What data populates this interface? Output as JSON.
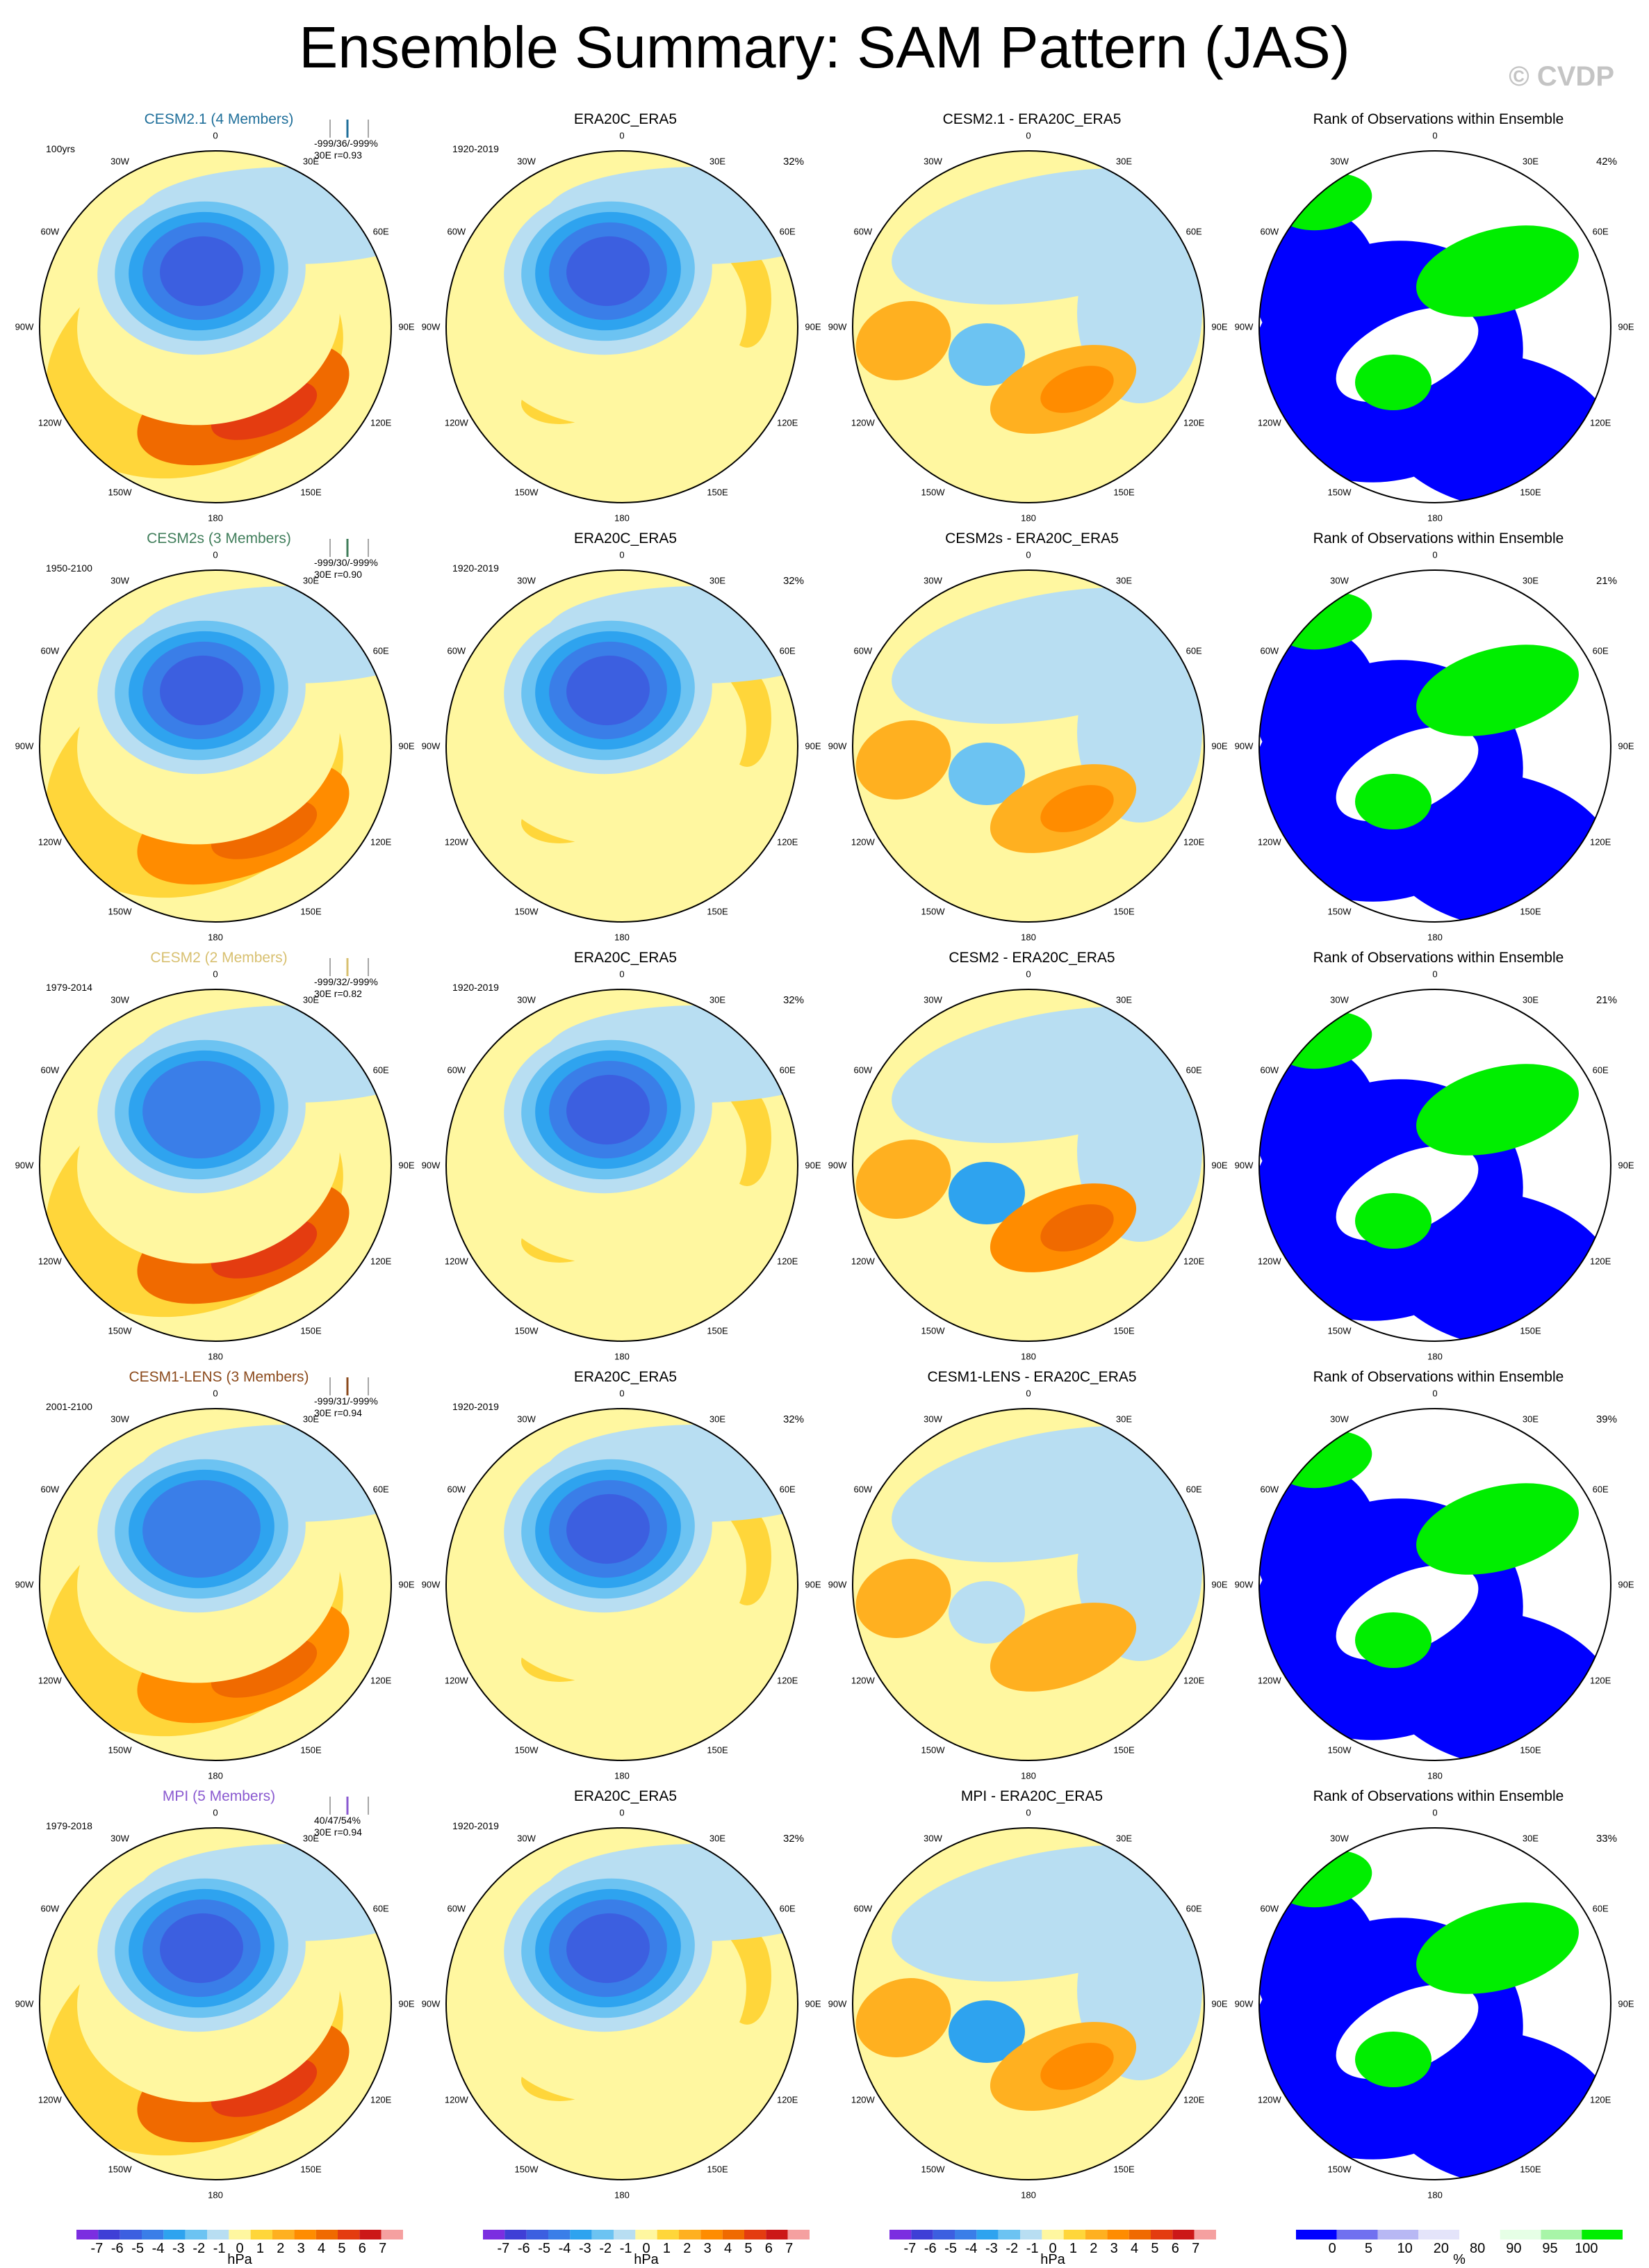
{
  "title": "Ensemble Summary: SAM Pattern (JAS)",
  "watermark": "© CVDP",
  "longitude_labels": [
    "0",
    "30E",
    "60E",
    "90E",
    "120E",
    "150E",
    "180",
    "150W",
    "120W",
    "90W",
    "60W",
    "30W"
  ],
  "chart_data": [
    {
      "type": "heatmap",
      "row": 0,
      "col": 0,
      "title": "CESM2.1 (4 Members)",
      "title_color": "#1f6f9a",
      "period": "100yrs",
      "stats": "-999/36/-999%",
      "stats2": "30E r=0.93",
      "kind": "model",
      "dipole": [
        -6.2,
        4.8
      ],
      "unit": "hPa"
    },
    {
      "type": "heatmap",
      "row": 0,
      "col": 1,
      "title": "ERA20C_ERA5",
      "period": "1920-2019",
      "pct": "32%",
      "kind": "obs",
      "dipole": [
        -5.6,
        2.4
      ],
      "unit": "hPa"
    },
    {
      "type": "heatmap",
      "row": 0,
      "col": 2,
      "title": "CESM2.1 - ERA20C_ERA5",
      "kind": "diff",
      "dipole": [
        -1.5,
        2.8
      ],
      "unit": "hPa"
    },
    {
      "type": "heatmap",
      "row": 0,
      "col": 3,
      "title": "Rank of Observations within Ensemble",
      "pct": "42%",
      "kind": "rank",
      "unit": "%"
    },
    {
      "type": "heatmap",
      "row": 1,
      "col": 0,
      "title": "CESM2s (3 Members)",
      "title_color": "#3f7d5a",
      "period": "1950-2100",
      "stats": "-999/30/-999%",
      "stats2": "30E r=0.90",
      "kind": "model",
      "dipole": [
        -5.8,
        3.6
      ],
      "unit": "hPa"
    },
    {
      "type": "heatmap",
      "row": 1,
      "col": 1,
      "title": "ERA20C_ERA5",
      "period": "1920-2019",
      "pct": "32%",
      "kind": "obs",
      "dipole": [
        -5.6,
        2.4
      ],
      "unit": "hPa"
    },
    {
      "type": "heatmap",
      "row": 1,
      "col": 2,
      "title": "CESM2s - ERA20C_ERA5",
      "kind": "diff",
      "dipole": [
        -1.2,
        2.0
      ],
      "unit": "hPa"
    },
    {
      "type": "heatmap",
      "row": 1,
      "col": 3,
      "title": "Rank of Observations within Ensemble",
      "pct": "21%",
      "kind": "rank",
      "unit": "%"
    },
    {
      "type": "heatmap",
      "row": 2,
      "col": 0,
      "title": "CESM2 (2 Members)",
      "title_color": "#d8c070",
      "period": "1979-2014",
      "stats": "-999/32/-999%",
      "stats2": "30E r=0.82",
      "kind": "model",
      "dipole": [
        -5.2,
        4.4
      ],
      "unit": "hPa"
    },
    {
      "type": "heatmap",
      "row": 2,
      "col": 1,
      "title": "ERA20C_ERA5",
      "period": "1920-2019",
      "pct": "32%",
      "kind": "obs",
      "dipole": [
        -5.6,
        2.4
      ],
      "unit": "hPa"
    },
    {
      "type": "heatmap",
      "row": 2,
      "col": 2,
      "title": "CESM2 - ERA20C_ERA5",
      "kind": "diff",
      "dipole": [
        -2.4,
        3.0
      ],
      "unit": "hPa"
    },
    {
      "type": "heatmap",
      "row": 2,
      "col": 3,
      "title": "Rank of Observations within Ensemble",
      "pct": "21%",
      "kind": "rank",
      "unit": "%"
    },
    {
      "type": "heatmap",
      "row": 3,
      "col": 0,
      "title": "CESM1-LENS (3 Members)",
      "title_color": "#8b4a1c",
      "period": "2001-2100",
      "stats": "-999/31/-999%",
      "stats2": "30E r=0.94",
      "kind": "model",
      "dipole": [
        -5.4,
        3.0
      ],
      "unit": "hPa"
    },
    {
      "type": "heatmap",
      "row": 3,
      "col": 1,
      "title": "ERA20C_ERA5",
      "period": "1920-2019",
      "pct": "32%",
      "kind": "obs",
      "dipole": [
        -5.6,
        2.4
      ],
      "unit": "hPa"
    },
    {
      "type": "heatmap",
      "row": 3,
      "col": 2,
      "title": "CESM1-LENS - ERA20C_ERA5",
      "kind": "diff",
      "dipole": [
        -0.8,
        1.8
      ],
      "unit": "hPa"
    },
    {
      "type": "heatmap",
      "row": 3,
      "col": 3,
      "title": "Rank of Observations within Ensemble",
      "pct": "39%",
      "kind": "rank",
      "unit": "%"
    },
    {
      "type": "heatmap",
      "row": 4,
      "col": 0,
      "title": "MPI (5 Members)",
      "title_color": "#8a5ad0",
      "period": "1979-2018",
      "stats": "40/47/54%",
      "stats2": "30E r=0.94",
      "kind": "model",
      "dipole": [
        -6.6,
        4.4
      ],
      "unit": "hPa"
    },
    {
      "type": "heatmap",
      "row": 4,
      "col": 1,
      "title": "ERA20C_ERA5",
      "period": "1920-2019",
      "pct": "32%",
      "kind": "obs",
      "dipole": [
        -5.6,
        2.4
      ],
      "unit": "hPa"
    },
    {
      "type": "heatmap",
      "row": 4,
      "col": 2,
      "title": "MPI - ERA20C_ERA5",
      "kind": "diff",
      "dipole": [
        -2.2,
        2.6
      ],
      "unit": "hPa"
    },
    {
      "type": "heatmap",
      "row": 4,
      "col": 3,
      "title": "Rank of Observations within Ensemble",
      "pct": "33%",
      "kind": "rank",
      "unit": "%"
    }
  ],
  "colorbars": [
    {
      "col": 0,
      "labels": [
        "-7",
        "-6",
        "-5",
        "-4",
        "-3",
        "-2",
        "-1",
        "0",
        "1",
        "2",
        "3",
        "4",
        "5",
        "6",
        "7"
      ],
      "unit": "hPa"
    },
    {
      "col": 1,
      "labels": [
        "-7",
        "-6",
        "-5",
        "-4",
        "-3",
        "-2",
        "-1",
        "0",
        "1",
        "2",
        "3",
        "4",
        "5",
        "6",
        "7"
      ],
      "unit": "hPa"
    },
    {
      "col": 2,
      "labels": [
        "-7",
        "-6",
        "-5",
        "-4",
        "-3",
        "-2",
        "-1",
        "0",
        "1",
        "2",
        "3",
        "4",
        "5",
        "6",
        "7"
      ],
      "unit": "hPa"
    },
    {
      "col": 3,
      "labels": [
        "0",
        "5",
        "10",
        "20",
        "80",
        "90",
        "95",
        "100"
      ],
      "unit": "%"
    }
  ],
  "colors": {
    "levels": [
      "#7b2ee0",
      "#3f3fd6",
      "#3c5fe0",
      "#3a7ee8",
      "#2ea3ef",
      "#6cc3f2",
      "#b8def2",
      "#fff7a0",
      "#ffd63a",
      "#ffb020",
      "#ff8c00",
      "#f06a00",
      "#e43c10",
      "#cc1818",
      "#f5a0a0"
    ],
    "rank": [
      "#0000ff",
      "#7070f0",
      "#b8b8f4",
      "#e4e4fa",
      "#ffffff",
      "#e6ffe6",
      "#a8f5a8",
      "#00ee00"
    ]
  }
}
